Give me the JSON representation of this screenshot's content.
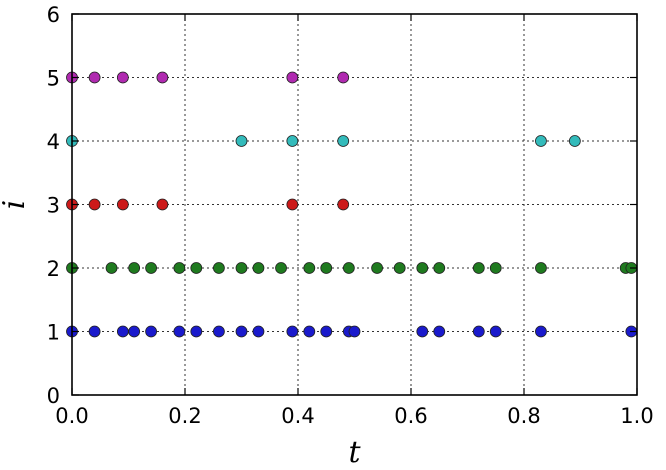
{
  "chart_data": {
    "type": "scatter",
    "title": "",
    "xlabel": "t",
    "ylabel": "i",
    "xlim": [
      0,
      1
    ],
    "ylim": [
      0,
      6
    ],
    "xticks": [
      "0.0",
      "0.2",
      "0.4",
      "0.6",
      "0.8",
      "1.0"
    ],
    "yticks": [
      "0",
      "1",
      "2",
      "3",
      "4",
      "5",
      "6"
    ],
    "grid": true,
    "series": [
      {
        "i": 1,
        "color": "#1a1acc",
        "x": [
          0.0,
          0.04,
          0.09,
          0.11,
          0.14,
          0.19,
          0.22,
          0.26,
          0.3,
          0.33,
          0.39,
          0.42,
          0.45,
          0.49,
          0.5,
          0.62,
          0.65,
          0.72,
          0.75,
          0.83,
          0.99
        ]
      },
      {
        "i": 2,
        "color": "#1f7a1f",
        "x": [
          0.0,
          0.07,
          0.11,
          0.14,
          0.19,
          0.22,
          0.26,
          0.3,
          0.33,
          0.37,
          0.42,
          0.45,
          0.49,
          0.54,
          0.58,
          0.62,
          0.65,
          0.72,
          0.75,
          0.83,
          0.98,
          0.99
        ]
      },
      {
        "i": 3,
        "color": "#cc1a1a",
        "x": [
          0.0,
          0.04,
          0.09,
          0.16,
          0.39,
          0.48
        ]
      },
      {
        "i": 4,
        "color": "#33bbbb",
        "x": [
          0.0,
          0.3,
          0.39,
          0.48,
          0.83,
          0.89
        ]
      },
      {
        "i": 5,
        "color": "#b02ab0",
        "x": [
          0.0,
          0.04,
          0.09,
          0.16,
          0.39,
          0.48
        ]
      }
    ]
  }
}
